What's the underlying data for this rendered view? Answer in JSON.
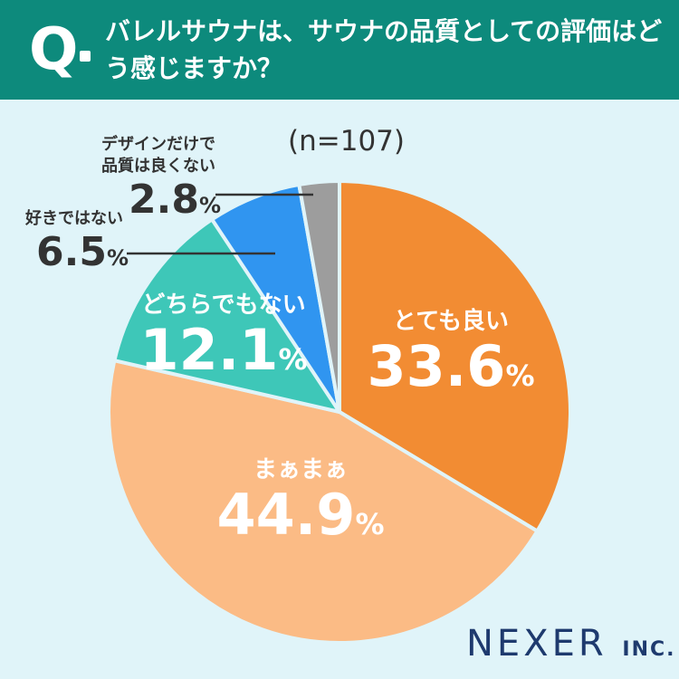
{
  "header": {
    "q_mark": "Q",
    "question": "バレルサウナは、サウナの品質としての評価はどう感じますか？"
  },
  "sample_size": "(n=107)",
  "brand": {
    "name": "NEXER",
    "suffix": "INC."
  },
  "colors": {
    "header_bg": "#0d8a7c",
    "background": "#e0f4f9",
    "very_good": "#f28c33",
    "so_so": "#fbbb85",
    "neither": "#3ec7b8",
    "not_good": "#3095f0",
    "poor_quality": "#9d9d9d"
  },
  "chart_data": {
    "type": "pie",
    "unit": "%",
    "slices": [
      {
        "label": "とても良い",
        "value": 33.6,
        "display": "33.6",
        "color": "#f28c33"
      },
      {
        "label": "まぁまぁ",
        "value": 44.9,
        "display": "44.9",
        "color": "#fbbb85"
      },
      {
        "label": "どちらでもない",
        "value": 12.1,
        "display": "12.1",
        "color": "#3ec7b8"
      },
      {
        "label": "好きではない",
        "value": 6.5,
        "display": "6.5",
        "color": "#3095f0"
      },
      {
        "label": "デザインだけで品質は良くない",
        "value": 2.8,
        "display": "2.8",
        "color": "#9d9d9d"
      }
    ]
  },
  "labels": {
    "poor_quality_line1": "デザインだけで",
    "poor_quality_line2": "品質は良くない"
  }
}
